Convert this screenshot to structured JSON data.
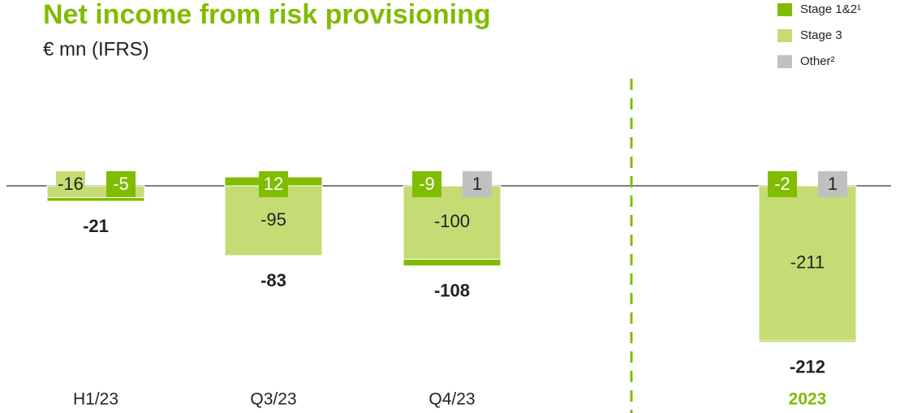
{
  "chart_data": {
    "type": "bar",
    "stacked": true,
    "title": "Net income from risk provisioning",
    "subtitle": "€ mn (IFRS)",
    "categories": [
      "H1/23",
      "Q3/23",
      "Q4/23",
      "2023"
    ],
    "series": [
      {
        "name": "Stage 1&2¹",
        "color": "#80bc00",
        "values": [
          -5,
          12,
          -9,
          -2
        ]
      },
      {
        "name": "Stage 3",
        "color": "#c5dc74",
        "values": [
          -16,
          -95,
          -100,
          -211
        ]
      },
      {
        "name": "Other²",
        "color": "#c0c0c0",
        "values": [
          null,
          null,
          1,
          1
        ]
      }
    ],
    "totals": [
      -21,
      -83,
      -108,
      -212
    ],
    "highlight_category": 3,
    "legend": "top-right"
  }
}
